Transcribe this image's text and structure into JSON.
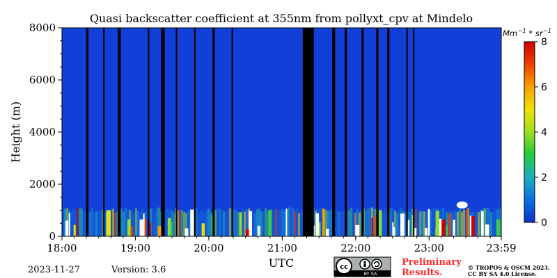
{
  "chart_data": {
    "type": "heatmap",
    "title": "Quasi backscatter coefficient at 355nm from pollyxt_cpv at Mindelo",
    "xlabel": "UTC",
    "ylabel": "Height (m)",
    "x_ticks": [
      "18:00",
      "19:00",
      "20:00",
      "21:00",
      "22:00",
      "23:00",
      "23:59"
    ],
    "x_range_hours": [
      18.0,
      23.9833
    ],
    "y_ticks": [
      0,
      2000,
      4000,
      6000,
      8000
    ],
    "y_range": [
      0,
      8000
    ],
    "colorbar": {
      "unit_base": "Mm",
      "unit_exp1": "−1",
      "unit_sep": " * ",
      "unit_base2": "sr",
      "unit_exp2": "−1",
      "ticks": [
        0,
        2,
        4,
        6,
        8
      ],
      "range": [
        0,
        8
      ],
      "colors": [
        "#1030c8",
        "#0a6fe0",
        "#1bb0c0",
        "#22c840",
        "#9be020",
        "#f0e000",
        "#f8a000",
        "#f04000",
        "#d00000"
      ]
    },
    "background_value": "low (~0.3)",
    "data_gaps_utc": [
      [
        18.33,
        18.36
      ],
      [
        18.56,
        18.58
      ],
      [
        18.76,
        18.8
      ],
      [
        19.17,
        19.19
      ],
      [
        19.35,
        19.4
      ],
      [
        19.55,
        19.57
      ],
      [
        19.8,
        19.82
      ],
      [
        20.05,
        20.08
      ],
      [
        20.31,
        20.33
      ],
      [
        21.28,
        21.43
      ],
      [
        21.68,
        21.72
      ],
      [
        21.85,
        21.88
      ],
      [
        22.08,
        22.11
      ],
      [
        22.28,
        22.31
      ],
      [
        22.43,
        22.46
      ],
      [
        22.69,
        22.71
      ],
      [
        22.78,
        22.8
      ]
    ],
    "aerosol_layer": {
      "top_m": 1000,
      "base_m": 0,
      "max_value": 8
    },
    "cloud_patches": [
      {
        "x_utc": 23.45,
        "height_m": 1200
      }
    ]
  },
  "footer": {
    "date": "2023-11-27",
    "version": "Version: 3.6",
    "license_badge_text": "BY   SA",
    "preliminary_line1": "Preliminary",
    "preliminary_line2": "Results.",
    "copyright_line1": "© TROPOS & OSCM 2023.",
    "copyright_line2": "CC BY SA 4.0 License."
  }
}
